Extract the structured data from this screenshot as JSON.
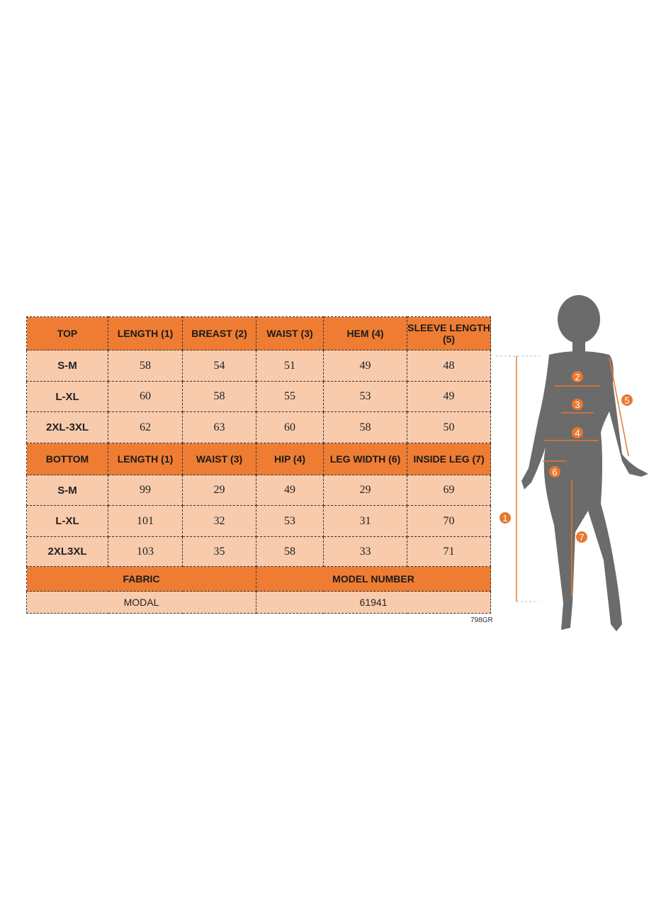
{
  "top": {
    "headers": [
      "TOP",
      "LENGTH (1)",
      "BREAST (2)",
      "WAIST (3)",
      "HEM (4)",
      "SLEEVE LENGTH (5)"
    ],
    "rows": [
      [
        "S-M",
        "58",
        "54",
        "51",
        "49",
        "48"
      ],
      [
        "L-XL",
        "60",
        "58",
        "55",
        "53",
        "49"
      ],
      [
        "2XL-3XL",
        "62",
        "63",
        "60",
        "58",
        "50"
      ]
    ]
  },
  "bottom": {
    "headers": [
      "BOTTOM",
      "LENGTH (1)",
      "WAIST (3)",
      "HIP (4)",
      "LEG WIDTH (6)",
      "INSIDE LEG (7)"
    ],
    "rows": [
      [
        "S-M",
        "99",
        "29",
        "49",
        "29",
        "69"
      ],
      [
        "L-XL",
        "101",
        "32",
        "53",
        "31",
        "70"
      ],
      [
        "2XL3XL",
        "103",
        "35",
        "58",
        "33",
        "71"
      ]
    ]
  },
  "info": {
    "fabric_label": "FABRIC",
    "fabric_value": "MODAL",
    "model_label": "MODEL NUMBER",
    "model_value": "61941"
  },
  "product_code": "798GR",
  "figure": {
    "markers": [
      "1",
      "2",
      "3",
      "4",
      "5",
      "6",
      "7"
    ]
  },
  "colors": {
    "header": "#EE7D33",
    "cell": "#F8CBAD",
    "silhouette": "#6B6B6B",
    "marker": "#E8782E"
  }
}
